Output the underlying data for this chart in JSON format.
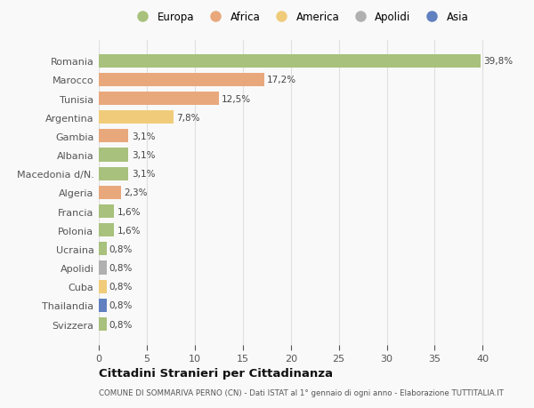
{
  "categories": [
    "Romania",
    "Marocco",
    "Tunisia",
    "Argentina",
    "Gambia",
    "Albania",
    "Macedonia d/N.",
    "Algeria",
    "Francia",
    "Polonia",
    "Ucraina",
    "Apolidi",
    "Cuba",
    "Thailandia",
    "Svizzera"
  ],
  "values": [
    39.8,
    17.2,
    12.5,
    7.8,
    3.1,
    3.1,
    3.1,
    2.3,
    1.6,
    1.6,
    0.8,
    0.8,
    0.8,
    0.8,
    0.8
  ],
  "labels": [
    "39,8%",
    "17,2%",
    "12,5%",
    "7,8%",
    "3,1%",
    "3,1%",
    "3,1%",
    "2,3%",
    "1,6%",
    "1,6%",
    "0,8%",
    "0,8%",
    "0,8%",
    "0,8%",
    "0,8%"
  ],
  "colors": [
    "#a8c17c",
    "#e8a87c",
    "#e8a87c",
    "#f0cc7a",
    "#e8a87c",
    "#a8c17c",
    "#a8c17c",
    "#e8a87c",
    "#a8c17c",
    "#a8c17c",
    "#a8c17c",
    "#b0b0b0",
    "#f0cc7a",
    "#6080c0",
    "#a8c17c"
  ],
  "legend": [
    {
      "label": "Europa",
      "color": "#a8c17c"
    },
    {
      "label": "Africa",
      "color": "#e8a87c"
    },
    {
      "label": "America",
      "color": "#f0cc7a"
    },
    {
      "label": "Apolidi",
      "color": "#b0b0b0"
    },
    {
      "label": "Asia",
      "color": "#6080c0"
    }
  ],
  "xlim": [
    0,
    42
  ],
  "xticks": [
    0,
    5,
    10,
    15,
    20,
    25,
    30,
    35,
    40
  ],
  "title": "Cittadini Stranieri per Cittadinanza",
  "subtitle": "COMUNE DI SOMMARIVA PERNO (CN) - Dati ISTAT al 1° gennaio di ogni anno - Elaborazione TUTTITALIA.IT",
  "bg_color": "#f9f9f9",
  "grid_color": "#e0e0e0",
  "bar_height": 0.72,
  "label_fontsize": 7.5,
  "ytick_fontsize": 8.0,
  "xtick_fontsize": 8.0
}
